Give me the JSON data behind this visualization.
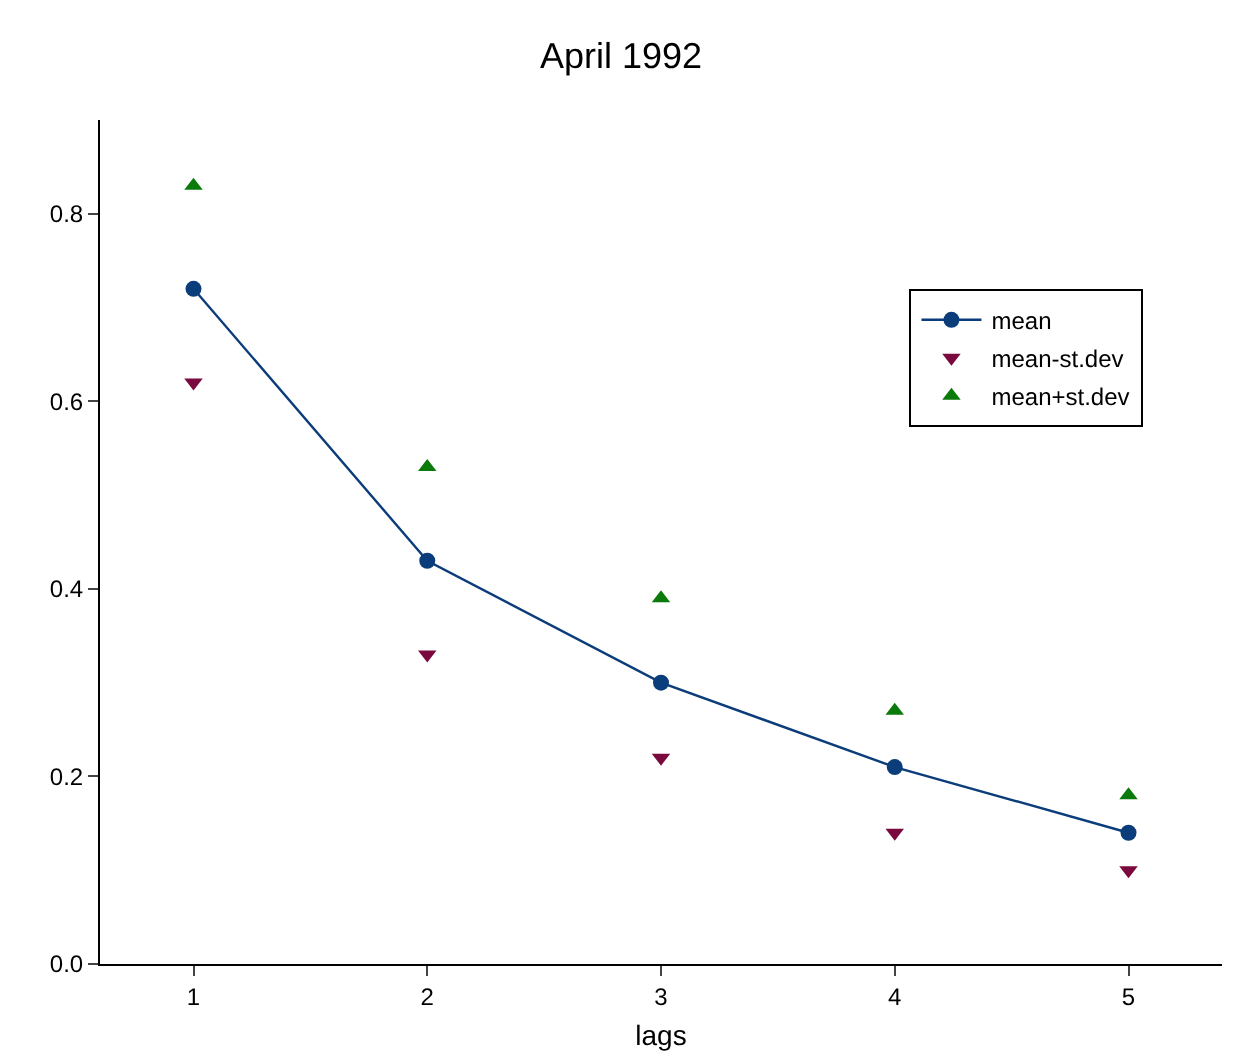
{
  "chart_data": {
    "type": "line",
    "title": "April 1992",
    "xlabel": "lags",
    "x": [
      1,
      2,
      3,
      4,
      5
    ],
    "series": [
      {
        "name": "mean",
        "color": "#0b3d7a",
        "marker": "circle",
        "values": [
          0.72,
          0.43,
          0.3,
          0.21,
          0.14
        ]
      },
      {
        "name": "mean-st.dev",
        "type": "scatter",
        "color": "#7a0a3d",
        "marker": "triangle-down",
        "values": [
          0.62,
          0.33,
          0.22,
          0.14,
          0.1
        ]
      },
      {
        "name": "mean+st.dev",
        "type": "scatter",
        "color": "#0a7a0a",
        "marker": "triangle",
        "values": [
          0.83,
          0.53,
          0.39,
          0.27,
          0.18
        ]
      }
    ],
    "xlim": [
      0.6,
      5.4
    ],
    "xticks": [
      1,
      2,
      3,
      4,
      5
    ],
    "ylim": [
      0,
      0.9
    ],
    "yticks": [
      {
        "value": 0,
        "label": "0.0"
      },
      0.2,
      0.4,
      0.6,
      0.8
    ],
    "grid": false,
    "legend": "top right"
  }
}
